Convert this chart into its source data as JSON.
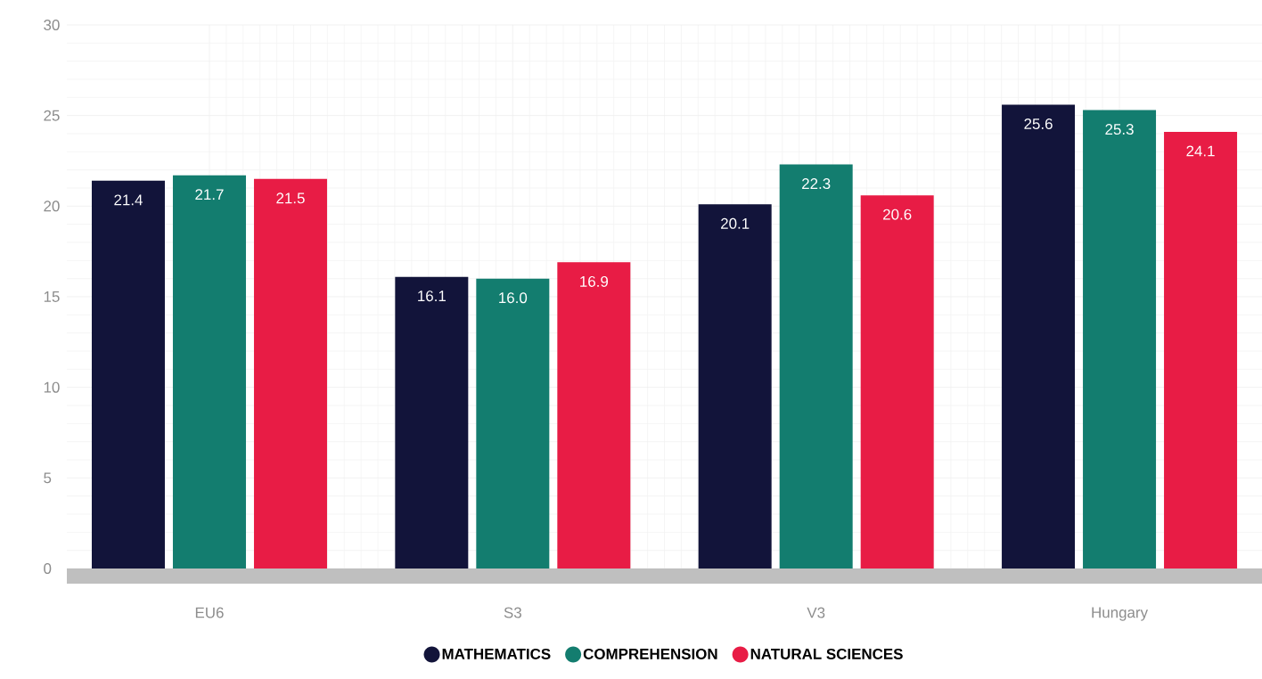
{
  "chart_data": {
    "type": "bar",
    "categories": [
      "EU6",
      "S3",
      "V3",
      "Hungary"
    ],
    "series": [
      {
        "name": "MATHEMATICS",
        "color": "#12143a",
        "values": [
          21.4,
          16.1,
          20.1,
          25.6
        ],
        "value_labels": [
          "21.4",
          "16.1",
          "20.1",
          "25.6"
        ]
      },
      {
        "name": "COMPREHENSION",
        "color": "#137d6f",
        "values": [
          21.7,
          16.0,
          22.3,
          25.3
        ],
        "value_labels": [
          "21.7",
          "16.0",
          "22.3",
          "25.3"
        ]
      },
      {
        "name": "NATURAL SCIENCES",
        "color": "#e81c45",
        "values": [
          21.5,
          16.9,
          20.6,
          24.1
        ],
        "value_labels": [
          "21.5",
          "16.9",
          "20.6",
          "24.1"
        ]
      }
    ],
    "ylim": [
      0,
      30
    ],
    "yticks": [
      0,
      5,
      10,
      15,
      20,
      25,
      30
    ],
    "grid": true,
    "legend": "bottom",
    "marker": "circle"
  }
}
